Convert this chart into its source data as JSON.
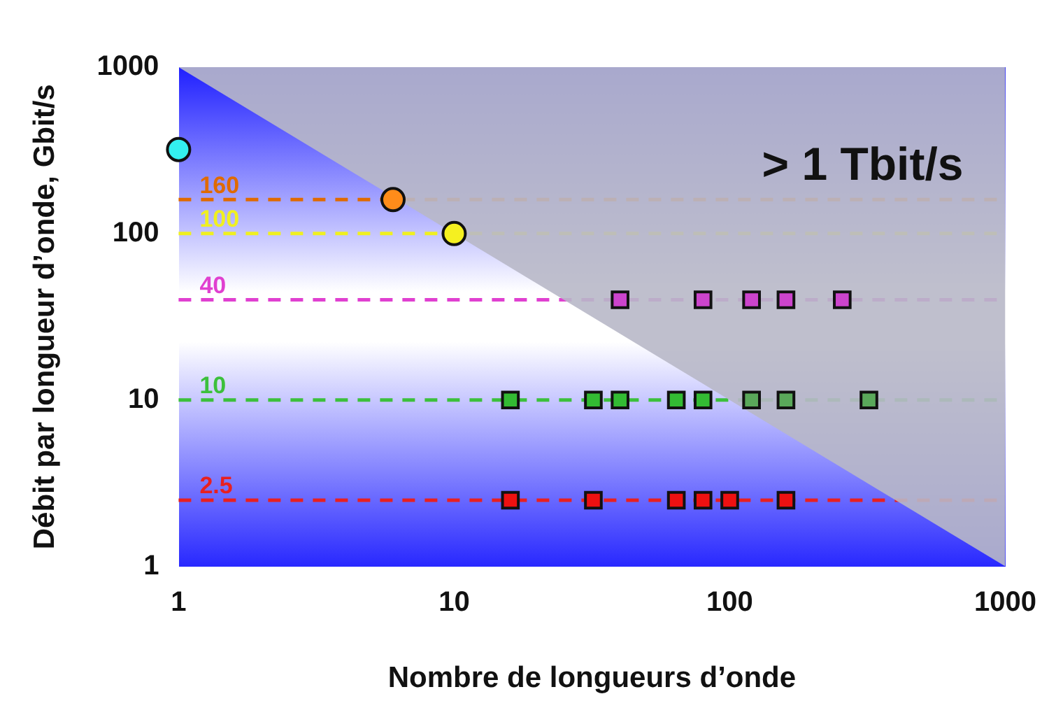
{
  "chart_data": {
    "type": "scatter",
    "xlabel": "Nombre de longueurs d’onde",
    "ylabel": "Débit par longueur d’onde, Gbit/s",
    "log": "xy",
    "xlim": [
      1,
      1000
    ],
    "xticks": [
      1,
      10,
      100,
      1000
    ],
    "ylim": [
      1,
      1000
    ],
    "yticks": [
      1,
      10,
      100,
      1000
    ],
    "grid": false,
    "legend": false,
    "annotations": [
      "> 1 Tbit/s"
    ],
    "ref_lines": [
      {
        "axis": "y",
        "value": 160,
        "label": "160",
        "color": "#e06a00",
        "line_style": "dashed"
      },
      {
        "axis": "y",
        "value": 100,
        "label": "100",
        "color": "#f0f020",
        "line_style": "dashed"
      },
      {
        "axis": "y",
        "value": 40,
        "label": "40",
        "color": "#e040d0",
        "line_style": "dashed"
      },
      {
        "axis": "y",
        "value": 10,
        "label": "10",
        "color": "#3cc03c",
        "line_style": "dashed"
      },
      {
        "axis": "y",
        "value": 2.5,
        "label": "2.5",
        "color": "#e82020",
        "line_style": "dashed"
      }
    ],
    "series": [
      {
        "type": "area",
        "color": "#b8b8c8",
        "x": [
          1,
          1000
        ],
        "values": [
          1000,
          1
        ],
        "marker": "none"
      },
      {
        "color": "#33f0f0",
        "x": [
          1
        ],
        "values": [
          320
        ],
        "marker": "circle"
      },
      {
        "color": "#ff8c1a",
        "x": [
          6
        ],
        "values": [
          160
        ],
        "marker": "circle"
      },
      {
        "color": "#f5f020",
        "x": [
          10
        ],
        "values": [
          100
        ],
        "marker": "circle"
      },
      {
        "color": "#cc44cc",
        "x": [
          40,
          80,
          120,
          160,
          256
        ],
        "values": [
          40,
          40,
          40,
          40,
          40
        ],
        "marker": "square"
      },
      {
        "color": "#33bb33",
        "x": [
          16,
          32,
          40,
          64,
          80
        ],
        "values": [
          10,
          10,
          10,
          10,
          10
        ],
        "marker": "square"
      },
      {
        "color": "#5aa85a",
        "x": [
          120,
          160,
          320
        ],
        "values": [
          10,
          10,
          10
        ],
        "marker": "square"
      },
      {
        "color": "#ee1111",
        "x": [
          16,
          32,
          64,
          80,
          100,
          160
        ],
        "values": [
          2.5,
          2.5,
          2.5,
          2.5,
          2.5,
          2.5
        ],
        "marker": "square"
      }
    ]
  }
}
